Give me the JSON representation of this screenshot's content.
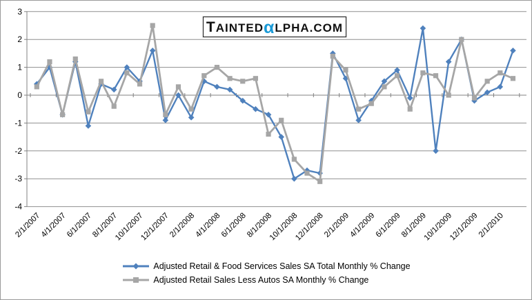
{
  "logo": {
    "part1": "TAINTED",
    "alpha": "α",
    "part2": "LPHA.COM",
    "alpha_color": "#1A9AD7"
  },
  "chart_data": {
    "type": "line",
    "title": "",
    "xlabel": "",
    "ylabel": "",
    "ylim": [
      -4,
      3
    ],
    "y_ticks": [
      3,
      2,
      1,
      0,
      -1,
      -2,
      -3,
      -4
    ],
    "grid": true,
    "legend_position": "bottom",
    "x_tick_labels": [
      "2/1/2007",
      "4/1/2007",
      "6/1/2007",
      "8/1/2007",
      "10/1/2007",
      "12/1/2007",
      "2/1/2008",
      "4/1/2008",
      "6/1/2008",
      "8/1/2008",
      "10/1/2008",
      "12/1/2008",
      "2/1/2009",
      "4/1/2009",
      "6/1/2009",
      "8/1/2009",
      "10/1/2009",
      "12/1/2009",
      "2/1/2010"
    ],
    "categories": [
      "2/1/2007",
      "3/1/2007",
      "4/1/2007",
      "5/1/2007",
      "6/1/2007",
      "7/1/2007",
      "8/1/2007",
      "9/1/2007",
      "10/1/2007",
      "11/1/2007",
      "12/1/2007",
      "1/1/2008",
      "2/1/2008",
      "3/1/2008",
      "4/1/2008",
      "5/1/2008",
      "6/1/2008",
      "7/1/2008",
      "8/1/2008",
      "9/1/2008",
      "10/1/2008",
      "11/1/2008",
      "12/1/2008",
      "1/1/2009",
      "2/1/2009",
      "3/1/2009",
      "4/1/2009",
      "5/1/2009",
      "6/1/2009",
      "7/1/2009",
      "8/1/2009",
      "9/1/2009",
      "10/1/2009",
      "11/1/2009",
      "12/1/2009",
      "1/1/2010",
      "2/1/2010",
      "3/1/2010"
    ],
    "series": [
      {
        "name": "Adjusted Retail & Food Services Sales SA Total Monthly % Change",
        "color": "#4F81BD",
        "marker": "diamond",
        "values": [
          0.4,
          1.0,
          -0.7,
          1.2,
          -1.1,
          0.4,
          0.2,
          1.0,
          0.5,
          1.6,
          -0.9,
          0.0,
          -0.8,
          0.5,
          0.3,
          0.2,
          -0.2,
          -0.5,
          -0.7,
          -1.5,
          -3.0,
          -2.7,
          -2.8,
          1.5,
          0.6,
          -0.9,
          -0.2,
          0.5,
          0.9,
          -0.1,
          2.4,
          -2.0,
          1.2,
          2.0,
          -0.2,
          0.1,
          0.3,
          1.6
        ]
      },
      {
        "name": "Adjusted Retail Sales Less Autos SA Monthly % Change",
        "color": "#A6A6A6",
        "marker": "square",
        "values": [
          0.3,
          1.2,
          -0.7,
          1.3,
          -0.6,
          0.5,
          -0.4,
          0.8,
          0.4,
          2.5,
          -0.7,
          0.3,
          -0.5,
          0.7,
          1.0,
          0.6,
          0.5,
          0.6,
          -1.4,
          -0.9,
          -2.3,
          -2.8,
          -3.1,
          1.4,
          0.9,
          -0.5,
          -0.3,
          0.3,
          0.7,
          -0.5,
          0.8,
          0.7,
          0.0,
          2.0,
          -0.1,
          0.5,
          0.8,
          0.6
        ]
      }
    ]
  }
}
